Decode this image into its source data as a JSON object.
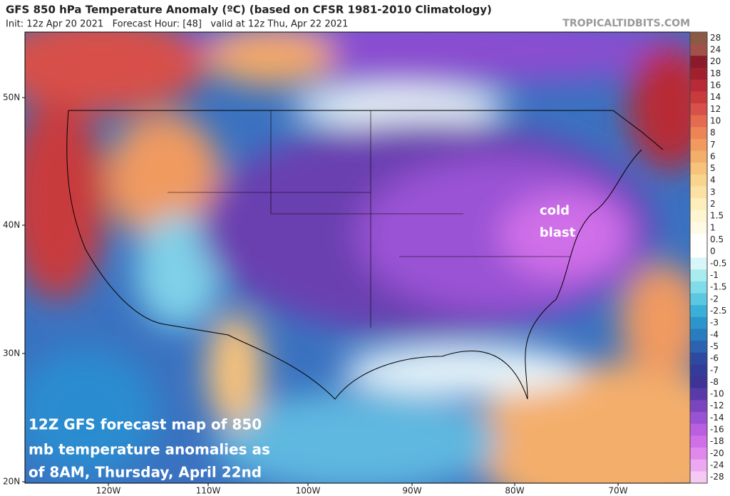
{
  "header": {
    "title": "GFS 850 hPa Temperature Anomaly (ºC) (based on CFSR 1981-2010 Climatology)",
    "subtitle": "Init: 12z Apr 20 2021   Forecast Hour: [48]   valid at 12z Thu, Apr 22 2021",
    "watermark": "TROPICALTIDBITS.COM"
  },
  "map": {
    "lat_labels": [
      "50N",
      "40N",
      "30N",
      "20N"
    ],
    "lon_labels": [
      "120W",
      "110W",
      "100W",
      "90W",
      "80W",
      "70W"
    ],
    "annotations": [
      "cold",
      "blast"
    ],
    "caption": [
      "12Z GFS forecast map of 850",
      "mb temperature anomalies as",
      "of 8AM, Thursday, April 22nd"
    ]
  },
  "colorbar": {
    "labels": [
      "28",
      "24",
      "20",
      "18",
      "16",
      "14",
      "12",
      "10",
      "8",
      "7",
      "6",
      "5",
      "4",
      "3",
      "2",
      "1.5",
      "1",
      "0.5",
      "0",
      "-0.5",
      "-1",
      "-1.5",
      "-2",
      "-2.5",
      "-3",
      "-4",
      "-5",
      "-6",
      "-7",
      "-8",
      "-10",
      "-12",
      "-14",
      "-16",
      "-18",
      "-20",
      "-24",
      "-28"
    ],
    "colors": [
      "#8b5a45",
      "#a0524a",
      "#8b1a2a",
      "#a0202e",
      "#b82a35",
      "#c83a3c",
      "#d8504a",
      "#e46a50",
      "#ec8456",
      "#f09a60",
      "#f4ae6c",
      "#f7c27c",
      "#f9d48e",
      "#fbe2a4",
      "#fdeebc",
      "#fef5d2",
      "#fffae6",
      "#ffffff",
      "#ffffff",
      "#d8f6f8",
      "#a8ecf0",
      "#80dce8",
      "#5ac8e0",
      "#3ab0d8",
      "#2c96cc",
      "#2a7cc0",
      "#2c62b0",
      "#2e4aa0",
      "#343c9a",
      "#3e3496",
      "#5a3aa8",
      "#7a46c0",
      "#9a52d4",
      "#b860e0",
      "#d070e8",
      "#e088ec",
      "#eca8f0",
      "#f6c8f4"
    ]
  }
}
